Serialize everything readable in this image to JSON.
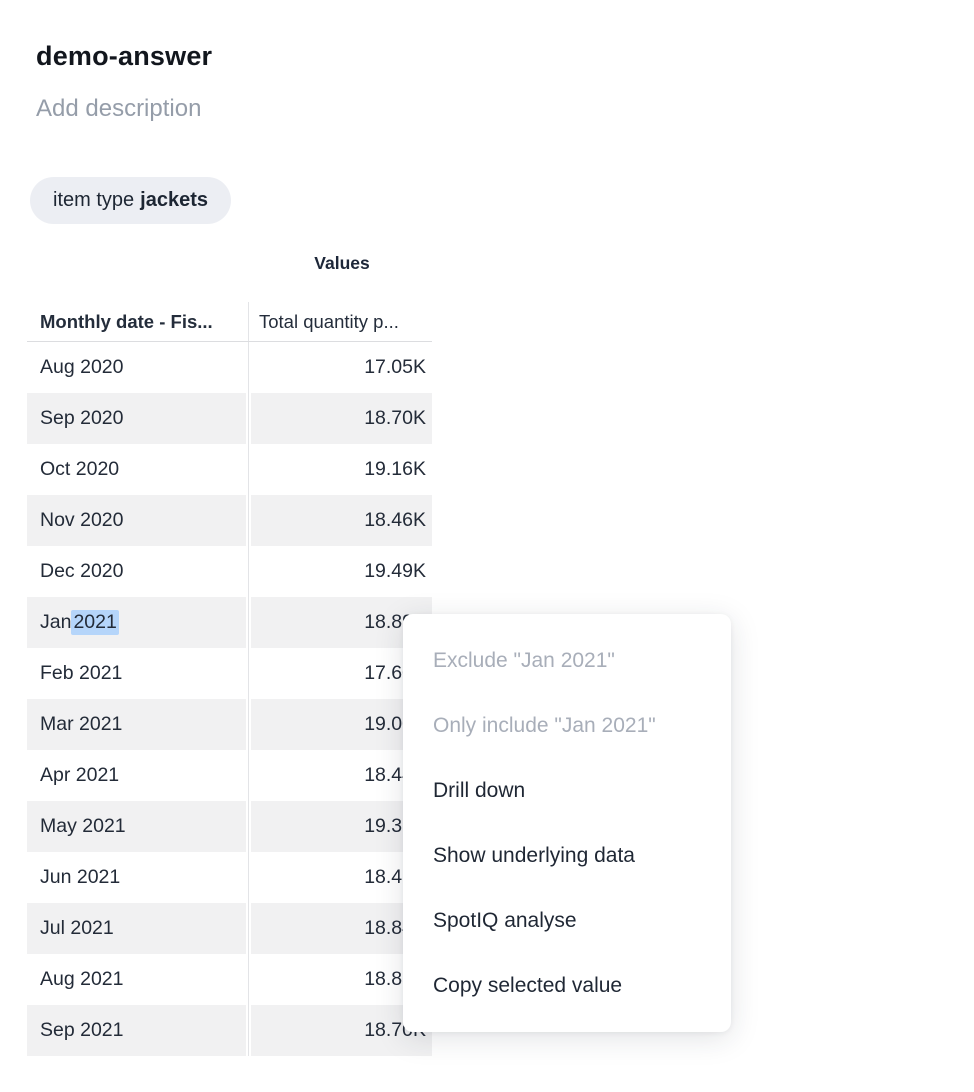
{
  "page": {
    "title": "demo-answer",
    "description_placeholder": "Add description"
  },
  "filter_chip": {
    "label": "item type",
    "value": "jackets"
  },
  "table": {
    "group_header": "Values",
    "columns": [
      {
        "label": "Monthly date - Fis..."
      },
      {
        "label": "Total quantity p..."
      }
    ],
    "rows": [
      {
        "date": "Aug 2020",
        "value": "17.05K"
      },
      {
        "date": "Sep 2020",
        "value": "18.70K"
      },
      {
        "date": "Oct 2020",
        "value": "19.16K"
      },
      {
        "date": "Nov 2020",
        "value": "18.46K"
      },
      {
        "date": "Dec 2020",
        "value": "19.49K"
      },
      {
        "date": "Jan 2021",
        "value": "18.89K",
        "highlight": "2021"
      },
      {
        "date": "Feb 2021",
        "value": "17.60K"
      },
      {
        "date": "Mar 2021",
        "value": "19.00K"
      },
      {
        "date": "Apr 2021",
        "value": "18.44K"
      },
      {
        "date": "May 2021",
        "value": "19.39K"
      },
      {
        "date": "Jun 2021",
        "value": "18.42K"
      },
      {
        "date": "Jul 2021",
        "value": "18.84K"
      },
      {
        "date": "Aug 2021",
        "value": "18.83K"
      },
      {
        "date": "Sep 2021",
        "value": "18.70K"
      }
    ],
    "selected_cell": {
      "row": "Jan 2021",
      "selected_text": "2021"
    }
  },
  "context_menu": {
    "items": [
      {
        "label": "Exclude \"Jan 2021\"",
        "disabled": true
      },
      {
        "label": "Only include \"Jan 2021\"",
        "disabled": true
      },
      {
        "label": "Drill down",
        "disabled": false
      },
      {
        "label": "Show underlying data",
        "disabled": false
      },
      {
        "label": "SpotIQ analyse",
        "disabled": false
      },
      {
        "label": "Copy selected value",
        "disabled": false
      }
    ]
  },
  "colors": {
    "chip_background": "#eceef3",
    "row_alt_background": "#f1f1f2",
    "text_dark": "#1e2734",
    "text_muted": "#959da9",
    "disabled_menu_text": "#a8aeb9",
    "selection_highlight": "#b5d5fa",
    "divider": "#e3e4e7"
  }
}
